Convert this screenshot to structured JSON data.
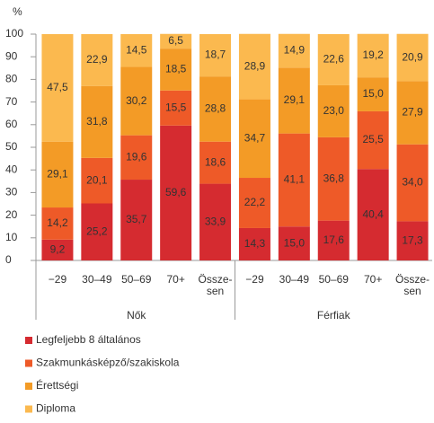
{
  "chart_data": {
    "type": "stacked-bar",
    "y_label": "%",
    "groups": [
      {
        "name": "Nők",
        "categories": [
          "−29",
          "30–49",
          "50–69",
          "70+",
          "Össze-\nsen"
        ]
      },
      {
        "name": "Férfiak",
        "categories": [
          "−29",
          "30–49",
          "50–69",
          "70+",
          "Össze-\nsen"
        ]
      }
    ],
    "series": [
      {
        "name": "Legfeljebb 8 általános",
        "color": "#d52b30",
        "values": [
          9.2,
          25.2,
          35.7,
          59.6,
          33.9,
          14.3,
          15.0,
          17.6,
          40.4,
          17.3
        ],
        "value_labels": [
          "9,2",
          "25,2",
          "35,7",
          "59,6",
          "33,9",
          "14,3",
          "15,0",
          "17,6",
          "40,4",
          "17,3"
        ]
      },
      {
        "name": "Szakmunkásképző/szakiskola",
        "color": "#ee5a28",
        "values": [
          14.2,
          20.1,
          19.6,
          15.5,
          18.6,
          22.2,
          41.1,
          36.8,
          25.5,
          34.0
        ],
        "value_labels": [
          "14,2",
          "20,1",
          "19,6",
          "15,5",
          "18,6",
          "22,2",
          "41,1",
          "36,8",
          "25,5",
          "34,0"
        ]
      },
      {
        "name": "Érettségi",
        "color": "#f39b26",
        "values": [
          29.1,
          31.8,
          30.2,
          18.5,
          28.8,
          34.7,
          29.1,
          23.0,
          15.0,
          27.9
        ],
        "value_labels": [
          "29,1",
          "31,8",
          "30,2",
          "18,5",
          "28,8",
          "34,7",
          "29,1",
          "23,0",
          "15,0",
          "27,9"
        ]
      },
      {
        "name": "Diploma",
        "color": "#fbb94f",
        "values": [
          47.5,
          22.9,
          14.5,
          6.5,
          18.7,
          28.9,
          14.9,
          22.6,
          19.2,
          20.9
        ],
        "value_labels": [
          "47,5",
          "22,9",
          "14,5",
          "6,5",
          "18,7",
          "28,9",
          "14,9",
          "22,6",
          "19,2",
          "20,9"
        ]
      }
    ],
    "ylim": [
      0,
      100
    ],
    "yticks": [
      0,
      10,
      20,
      30,
      40,
      50,
      60,
      70,
      80,
      90,
      100
    ]
  }
}
